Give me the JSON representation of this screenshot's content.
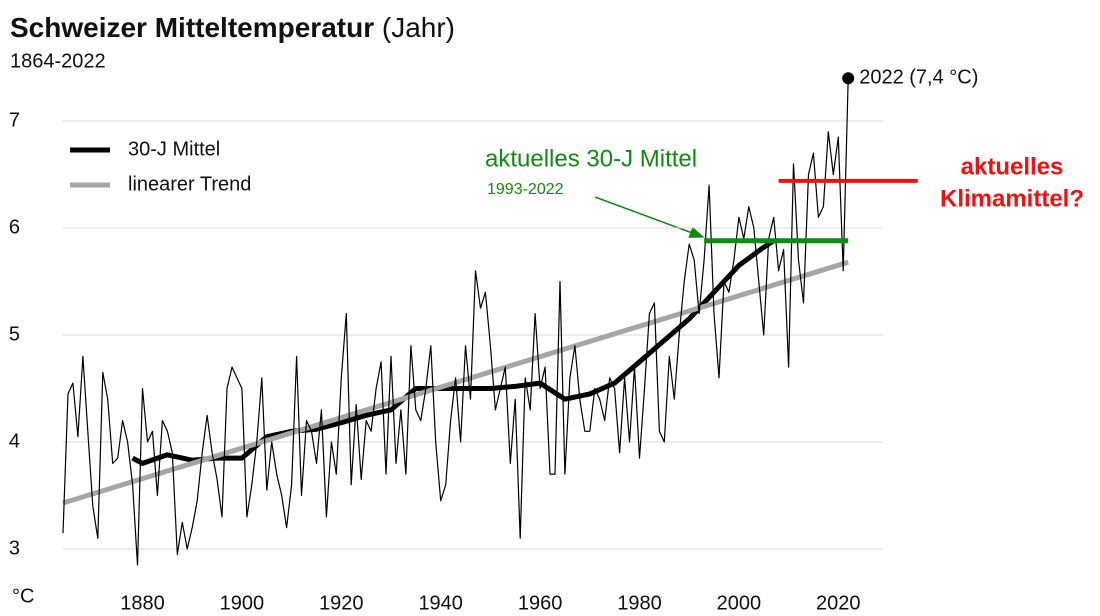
{
  "chart_data": {
    "type": "line",
    "title": "Schweizer Mitteltemperatur",
    "title_note": "(Jahr)",
    "subtitle": "1864-2022",
    "y_label": "°C",
    "xlim": [
      1864,
      2029
    ],
    "xticks": [
      1880,
      1900,
      1920,
      1940,
      1960,
      1980,
      2000,
      2020
    ],
    "ylim": [
      3,
      7
    ],
    "yticks": [
      3,
      4,
      5,
      6,
      7
    ],
    "grid": true,
    "legend": "upper left",
    "series": [
      {
        "color": "#000000",
        "width": 1.2,
        "x": [
          1864,
          1865,
          1866,
          1867,
          1868,
          1869,
          1870,
          1871,
          1872,
          1873,
          1874,
          1875,
          1876,
          1877,
          1878,
          1879,
          1880,
          1881,
          1882,
          1883,
          1884,
          1885,
          1886,
          1887,
          1888,
          1889,
          1890,
          1891,
          1892,
          1893,
          1894,
          1895,
          1896,
          1897,
          1898,
          1899,
          1900,
          1901,
          1902,
          1903,
          1904,
          1905,
          1906,
          1907,
          1908,
          1909,
          1910,
          1911,
          1912,
          1913,
          1914,
          1915,
          1916,
          1917,
          1918,
          1919,
          1920,
          1921,
          1922,
          1923,
          1924,
          1925,
          1926,
          1927,
          1928,
          1929,
          1930,
          1931,
          1932,
          1933,
          1934,
          1935,
          1936,
          1937,
          1938,
          1939,
          1940,
          1941,
          1942,
          1943,
          1944,
          1945,
          1946,
          1947,
          1948,
          1949,
          1950,
          1951,
          1952,
          1953,
          1954,
          1955,
          1956,
          1957,
          1958,
          1959,
          1960,
          1961,
          1962,
          1963,
          1964,
          1965,
          1966,
          1967,
          1968,
          1969,
          1970,
          1971,
          1972,
          1973,
          1974,
          1975,
          1976,
          1977,
          1978,
          1979,
          1980,
          1981,
          1982,
          1983,
          1984,
          1985,
          1986,
          1987,
          1988,
          1989,
          1990,
          1991,
          1992,
          1993,
          1994,
          1995,
          1996,
          1997,
          1998,
          1999,
          2000,
          2001,
          2002,
          2003,
          2004,
          2005,
          2006,
          2007,
          2008,
          2009,
          2010,
          2011,
          2012,
          2013,
          2014,
          2015,
          2016,
          2017,
          2018,
          2019,
          2020,
          2021,
          2022
        ],
        "values": [
          3.15,
          4.45,
          4.55,
          4.05,
          4.8,
          4.1,
          3.4,
          3.1,
          4.65,
          4.4,
          3.8,
          3.85,
          4.2,
          4.0,
          3.6,
          2.85,
          4.5,
          4.0,
          4.1,
          3.5,
          4.2,
          4.1,
          3.9,
          2.95,
          3.25,
          3.0,
          3.2,
          3.45,
          3.9,
          4.25,
          3.9,
          3.65,
          3.3,
          4.5,
          4.7,
          4.6,
          4.5,
          3.3,
          3.6,
          4.0,
          4.6,
          3.55,
          4.0,
          3.7,
          3.5,
          3.2,
          3.6,
          4.8,
          3.5,
          4.2,
          4.1,
          3.8,
          4.3,
          3.3,
          4.0,
          3.7,
          4.6,
          5.2,
          3.6,
          4.35,
          3.65,
          4.2,
          4.1,
          4.5,
          4.75,
          3.7,
          4.8,
          3.8,
          4.3,
          3.7,
          4.9,
          4.3,
          4.2,
          4.5,
          4.9,
          4.0,
          3.45,
          3.6,
          4.2,
          4.6,
          4.0,
          4.9,
          4.4,
          5.6,
          5.25,
          5.4,
          4.9,
          4.3,
          4.5,
          4.7,
          3.8,
          4.4,
          3.1,
          4.6,
          4.3,
          5.2,
          4.5,
          4.7,
          3.7,
          3.7,
          5.5,
          3.7,
          4.6,
          4.9,
          4.4,
          4.1,
          4.1,
          4.5,
          4.4,
          4.2,
          4.6,
          4.5,
          3.9,
          4.6,
          4.0,
          4.7,
          3.85,
          4.5,
          5.2,
          5.3,
          4.1,
          4.0,
          4.8,
          4.4,
          5.0,
          5.5,
          5.85,
          5.7,
          5.2,
          5.7,
          6.4,
          5.2,
          4.6,
          5.5,
          5.4,
          5.7,
          6.1,
          5.9,
          6.2,
          6.0,
          5.5,
          5.0,
          5.9,
          6.1,
          5.6,
          5.8,
          4.7,
          6.6,
          5.7,
          5.3,
          6.5,
          6.7,
          6.1,
          6.2,
          6.9,
          6.5,
          6.85,
          5.6,
          7.4
        ]
      },
      {
        "name": "30-J Mittel",
        "color": "#000000",
        "width": 5,
        "x": [
          1878,
          1880,
          1885,
          1890,
          1895,
          1900,
          1905,
          1910,
          1915,
          1920,
          1925,
          1930,
          1935,
          1940,
          1945,
          1950,
          1955,
          1960,
          1965,
          1970,
          1975,
          1980,
          1985,
          1990,
          1995,
          2000,
          2005,
          2007
        ],
        "values": [
          3.85,
          3.8,
          3.88,
          3.83,
          3.85,
          3.85,
          4.05,
          4.1,
          4.12,
          4.18,
          4.25,
          4.3,
          4.5,
          4.5,
          4.5,
          4.5,
          4.52,
          4.55,
          4.4,
          4.45,
          4.55,
          4.75,
          4.95,
          5.15,
          5.4,
          5.65,
          5.82,
          5.88
        ]
      },
      {
        "name": "linearer Trend",
        "color": "#a6a6a6",
        "width": 5,
        "x": [
          1864,
          2022
        ],
        "values": [
          3.43,
          5.68
        ]
      },
      {
        "color": "#108a10",
        "width": 5,
        "x": [
          1993,
          2022
        ],
        "values": [
          5.88,
          5.88
        ]
      },
      {
        "color": "#ee1111",
        "width": 4,
        "x": [
          2008,
          2036
        ],
        "values": [
          6.44,
          6.44
        ]
      }
    ],
    "highlight": {
      "x": 2022,
      "value": 7.4,
      "label": "2022 (7,4 °C)"
    },
    "mean_label": "aktuelles  30-J Mittel",
    "mean_period": "1993-2022",
    "climate_label": [
      "aktuelles",
      "Klimamittel?"
    ]
  }
}
